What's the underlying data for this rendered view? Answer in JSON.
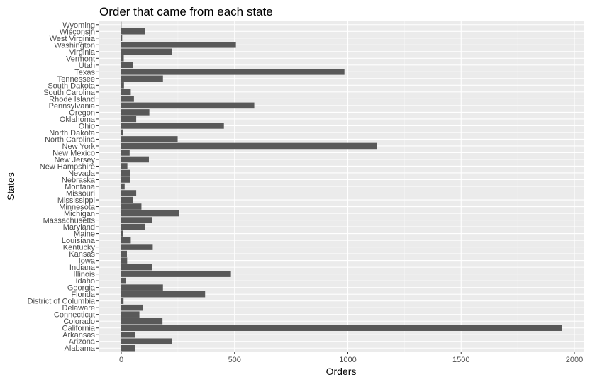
{
  "chart_data": {
    "type": "bar",
    "orientation": "horizontal",
    "title": "Order that came from each state",
    "xlabel": "Orders",
    "ylabel": "States",
    "xlim": [
      0,
      2000
    ],
    "xticks": [
      "0",
      "500",
      "1000",
      "1500",
      "2000"
    ],
    "grid": true,
    "colors": {
      "bar": "#595959",
      "panel": "#ebebeb",
      "grid_major": "#ffffff",
      "grid_minor": "#f5f5f5"
    },
    "categories": [
      "Alabama",
      "Arizona",
      "Arkansas",
      "California",
      "Colorado",
      "Connecticut",
      "Delaware",
      "District of Columbia",
      "Florida",
      "Georgia",
      "Idaho",
      "Illinois",
      "Indiana",
      "Iowa",
      "Kansas",
      "Kentucky",
      "Louisiana",
      "Maine",
      "Maryland",
      "Massachusetts",
      "Michigan",
      "Minnesota",
      "Mississippi",
      "Missouri",
      "Montana",
      "Nebraska",
      "Nevada",
      "New Hampshire",
      "New Jersey",
      "New Mexico",
      "New York",
      "North Carolina",
      "North Dakota",
      "Ohio",
      "Oklahoma",
      "Oregon",
      "Pennsylvania",
      "Rhode Island",
      "South Carolina",
      "South Dakota",
      "Tennessee",
      "Texas",
      "Utah",
      "Vermont",
      "Virginia",
      "Washington",
      "West Virginia",
      "Wisconsin",
      "Wyoming"
    ],
    "values": [
      61,
      224,
      60,
      1946,
      182,
      80,
      96,
      10,
      370,
      184,
      21,
      484,
      135,
      26,
      25,
      139,
      42,
      8,
      105,
      135,
      255,
      89,
      53,
      66,
      15,
      38,
      39,
      27,
      122,
      37,
      1128,
      249,
      7,
      453,
      66,
      124,
      587,
      56,
      42,
      12,
      184,
      985,
      53,
      11,
      224,
      506,
      4,
      105,
      1
    ]
  }
}
